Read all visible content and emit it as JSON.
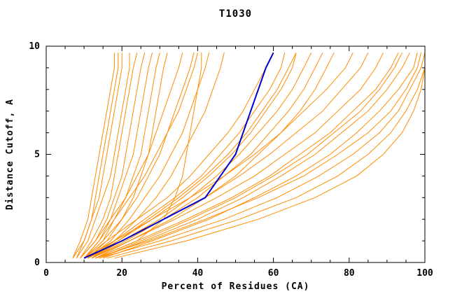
{
  "chart_data": {
    "type": "line",
    "title": "T1030",
    "xlabel": "Percent of Residues (CA)",
    "ylabel": "Distance Cutoff, A",
    "xlim": [
      0,
      100
    ],
    "ylim": [
      0,
      10
    ],
    "x_major_ticks": [
      0,
      20,
      40,
      60,
      80,
      100
    ],
    "x_minor_tick_step": 5,
    "y_major_ticks": [
      0,
      5,
      10
    ],
    "y_minor_tick_step": 1,
    "grid": false,
    "legend": "none",
    "background": "#ffffff",
    "frame_color": "#000000",
    "text_color": "#000000",
    "series_color": "#ff8c00",
    "highlight_color": "#0000cd",
    "y": [
      0.2,
      1,
      2,
      3,
      4,
      5,
      6,
      7,
      8,
      9,
      9.7
    ],
    "highlight": {
      "x": [
        10,
        20,
        31,
        42,
        46,
        50,
        52,
        54,
        56,
        58,
        60
      ]
    },
    "series": [
      {
        "x": [
          7,
          9,
          11,
          12,
          13,
          14,
          15,
          16,
          17,
          18,
          18
        ]
      },
      {
        "x": [
          8,
          10,
          12,
          14,
          15,
          16,
          17,
          18,
          19,
          20,
          20
        ]
      },
      {
        "x": [
          8,
          11,
          13,
          15,
          17,
          18,
          19,
          20,
          21,
          22,
          22
        ]
      },
      {
        "x": [
          9,
          12,
          15,
          17,
          18,
          19,
          20,
          21,
          22,
          23,
          24
        ]
      },
      {
        "x": [
          9,
          13,
          16,
          18,
          20,
          21,
          22,
          23,
          24,
          25,
          26
        ]
      },
      {
        "x": [
          10,
          14,
          17,
          19,
          21,
          23,
          24,
          25,
          26,
          27,
          28
        ]
      },
      {
        "x": [
          10,
          15,
          18,
          21,
          23,
          25,
          26,
          27,
          28,
          29,
          30
        ]
      },
      {
        "x": [
          11,
          16,
          20,
          23,
          25,
          27,
          28,
          29,
          30,
          31,
          32
        ]
      },
      {
        "x": [
          7,
          10,
          12,
          13,
          14,
          15,
          16,
          17,
          18,
          19,
          19
        ]
      },
      {
        "x": [
          9,
          13,
          17,
          21,
          24,
          27,
          29,
          31,
          33,
          35,
          36
        ]
      },
      {
        "x": [
          10,
          15,
          20,
          24,
          27,
          30,
          32,
          34,
          36,
          38,
          39
        ]
      },
      {
        "x": [
          11,
          17,
          22,
          26,
          30,
          33,
          36,
          38,
          40,
          42,
          43
        ]
      },
      {
        "x": [
          12,
          18,
          24,
          29,
          33,
          36,
          39,
          42,
          44,
          46,
          47
        ]
      },
      {
        "x": [
          13,
          24,
          31,
          34,
          36,
          37,
          38,
          39,
          40,
          41,
          41
        ]
      },
      {
        "x": [
          10,
          14,
          18,
          22,
          26,
          29,
          32,
          35,
          37,
          39,
          40
        ]
      },
      {
        "x": [
          10,
          16,
          24,
          32,
          38,
          43,
          48,
          52,
          55,
          58,
          60
        ]
      },
      {
        "x": [
          11,
          18,
          26,
          34,
          41,
          46,
          51,
          55,
          59,
          62,
          63
        ]
      },
      {
        "x": [
          11,
          19,
          28,
          36,
          43,
          49,
          54,
          58,
          62,
          65,
          66
        ]
      },
      {
        "x": [
          12,
          20,
          30,
          38,
          45,
          51,
          56,
          61,
          65,
          68,
          70
        ]
      },
      {
        "x": [
          12,
          21,
          31,
          40,
          47,
          54,
          59,
          64,
          68,
          71,
          73
        ]
      },
      {
        "x": [
          13,
          22,
          33,
          42,
          50,
          56,
          62,
          67,
          71,
          74,
          76
        ]
      },
      {
        "x": [
          12,
          19,
          27,
          35,
          42,
          48,
          53,
          57,
          61,
          64,
          66
        ]
      },
      {
        "x": [
          10,
          18,
          28,
          38,
          47,
          55,
          62,
          68,
          74,
          79,
          81
        ]
      },
      {
        "x": [
          11,
          20,
          31,
          42,
          51,
          59,
          66,
          73,
          78,
          83,
          85
        ]
      },
      {
        "x": [
          12,
          22,
          34,
          45,
          55,
          63,
          71,
          77,
          83,
          87,
          89
        ]
      },
      {
        "x": [
          13,
          24,
          37,
          49,
          59,
          67,
          75,
          81,
          87,
          91,
          93
        ]
      },
      {
        "x": [
          14,
          26,
          40,
          52,
          62,
          71,
          78,
          85,
          90,
          94,
          96
        ]
      },
      {
        "x": [
          15,
          28,
          43,
          55,
          66,
          75,
          82,
          88,
          93,
          97,
          98
        ]
      },
      {
        "x": [
          13,
          27,
          42,
          56,
          68,
          77,
          85,
          91,
          95,
          98,
          99
        ]
      },
      {
        "x": [
          14,
          25,
          38,
          50,
          60,
          69,
          76,
          83,
          88,
          92,
          94
        ]
      },
      {
        "x": [
          14,
          30,
          47,
          61,
          72,
          81,
          88,
          93,
          96,
          99,
          100
        ]
      },
      {
        "x": [
          16,
          33,
          51,
          66,
          77,
          85,
          91,
          95,
          98,
          100,
          100
        ]
      },
      {
        "x": [
          18,
          37,
          56,
          71,
          82,
          89,
          94,
          97,
          99,
          100,
          100
        ]
      }
    ]
  }
}
